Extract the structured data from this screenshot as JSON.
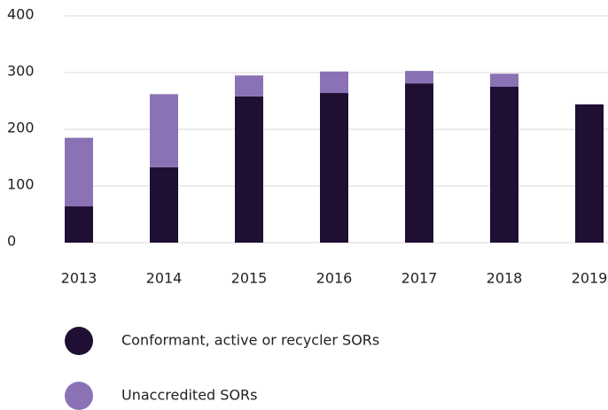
{
  "chart_data": {
    "type": "bar",
    "stacked": true,
    "categories": [
      "2013",
      "2014",
      "2015",
      "2016",
      "2017",
      "2018",
      "2019"
    ],
    "series": [
      {
        "name": "Conformant, active or recycler SORs",
        "color": "#1f0f33",
        "values": [
          64,
          133,
          258,
          264,
          281,
          275,
          244
        ]
      },
      {
        "name": "Unaccredited SORs",
        "color": "#8b72b5",
        "values": [
          121,
          129,
          37,
          38,
          22,
          23,
          0
        ]
      }
    ],
    "ylim": [
      0,
      400
    ],
    "yticks": [
      0,
      100,
      200,
      300,
      400
    ],
    "grid": true,
    "legend": "bottom"
  }
}
